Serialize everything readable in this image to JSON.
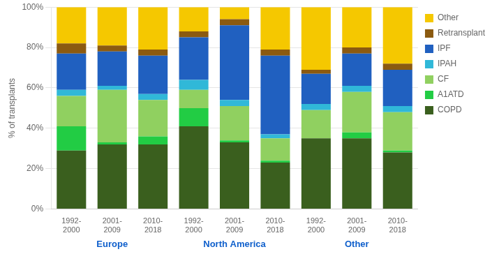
{
  "chart_data": {
    "type": "bar",
    "stacked": true,
    "categories": [
      "1992-\n2000",
      "2001-\n2009",
      "2010-\n2018",
      "1992-\n2000",
      "2001-\n2009",
      "2010-\n2018",
      "1992-\n2000",
      "2001-\n2009",
      "2010-\n2018"
    ],
    "series": [
      {
        "name": "COPD",
        "color": "#3a5f1e",
        "values": [
          29,
          32,
          32,
          41,
          33,
          23,
          35,
          35,
          28
        ]
      },
      {
        "name": "A1ATD",
        "color": "#22cc44",
        "values": [
          12,
          1,
          4,
          9,
          1,
          1,
          0,
          3,
          1
        ]
      },
      {
        "name": "CF",
        "color": "#90d060",
        "values": [
          15,
          26,
          18,
          9,
          17,
          11,
          14,
          20,
          19
        ]
      },
      {
        "name": "IPAH",
        "color": "#30b8d8",
        "values": [
          3,
          2,
          3,
          5,
          3,
          2,
          3,
          3,
          3
        ]
      },
      {
        "name": "IPF",
        "color": "#2060c0",
        "values": [
          18,
          17,
          19,
          21,
          37,
          39,
          15,
          16,
          18
        ]
      },
      {
        "name": "Retransplant",
        "color": "#8b5a10",
        "values": [
          5,
          3,
          3,
          3,
          3,
          3,
          2,
          3,
          3
        ]
      },
      {
        "name": "Other",
        "color": "#f5c800",
        "values": [
          18,
          19,
          21,
          12,
          6,
          21,
          31,
          20,
          28
        ]
      }
    ],
    "ylabel": "% of transplants",
    "ylim": [
      0,
      100
    ],
    "yticks": [
      {
        "value": 0,
        "label": "0%"
      },
      {
        "value": 20,
        "label": "20%"
      },
      {
        "value": 40,
        "label": "40%"
      },
      {
        "value": 60,
        "label": "60%"
      },
      {
        "value": 80,
        "label": "80%"
      },
      {
        "value": 100,
        "label": "100%"
      }
    ],
    "grid": true,
    "legend": "right",
    "annotations": [
      "Europe",
      "North America",
      "Other"
    ]
  }
}
